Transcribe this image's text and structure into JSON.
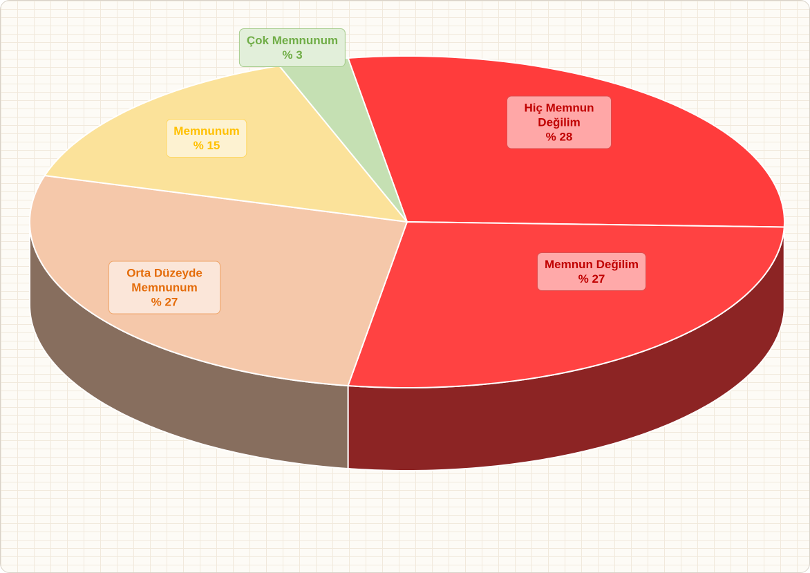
{
  "chart_data": {
    "type": "pie",
    "categories": [
      "Hiç Memnun Değilim",
      "Memnun Değilim",
      "Orta Düzeyde Memnunum",
      "Memnunum",
      "Çok Memnunum"
    ],
    "values": [
      28,
      27,
      27,
      15,
      3
    ],
    "value_labels": [
      "% 28",
      "% 27",
      "% 27",
      "% 15",
      "% 3"
    ],
    "colors": [
      "#ff3c3c",
      "#ff4242",
      "#f5c8aa",
      "#fbe29a",
      "#c5e0b3"
    ],
    "label_colors": [
      "#c00000",
      "#c00000",
      "#e46c0a",
      "#ffc000",
      "#70ad47"
    ]
  }
}
